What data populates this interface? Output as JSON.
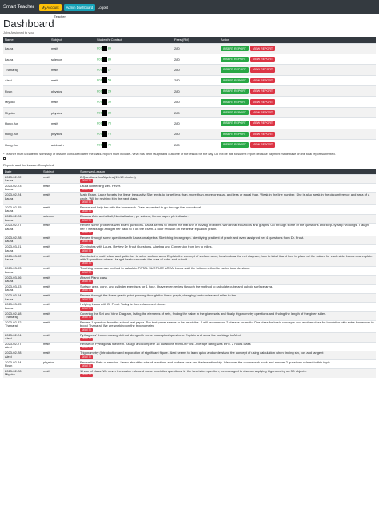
{
  "nav": {
    "brand": "Smart Teacher",
    "my_account": "My Account",
    "admin_dashboard": "Admin Dashboard",
    "logout": "Logout"
  },
  "header": {
    "title": "Dashboard",
    "role": "Teacher",
    "subtitle": "Jobs Assigned to you"
  },
  "jobs": {
    "columns": [
      "Name",
      "Subject",
      "Student's Contact",
      "Fees (RM)",
      "Action"
    ],
    "insert_label": "INSERT REPORT",
    "view_label": "VIEW REPORT",
    "rows": [
      {
        "name": "Laura",
        "subject": "math",
        "c1": "601",
        "c2": "89",
        "fees": "280"
      },
      {
        "name": "Laura",
        "subject": "science",
        "c1": "601",
        "c2": "89",
        "fees": "280"
      },
      {
        "name": "Thanaraj",
        "subject": "math",
        "c1": "601",
        "c2": "17",
        "fees": "280"
      },
      {
        "name": "Alexi",
        "subject": "math",
        "c1": "601",
        "c2": "59",
        "fees": "280"
      },
      {
        "name": "Ryan",
        "subject": "physics",
        "c1": "601",
        "c2": "29",
        "fees": "280"
      },
      {
        "name": "Miyoko",
        "subject": "math",
        "c1": "601",
        "c2": "35",
        "fees": "280"
      },
      {
        "name": "Miyoko",
        "subject": "physics",
        "c1": "601",
        "c2": "35",
        "fees": "280"
      },
      {
        "name": "Hong Jun",
        "subject": "math",
        "c1": "601",
        "c2": "76",
        "fees": "280"
      },
      {
        "name": "Hong Jun",
        "subject": "physics",
        "c1": "601",
        "c2": "76",
        "fees": "280"
      },
      {
        "name": "Hong Jun",
        "subject": "addmath",
        "c1": "601",
        "c2": "76",
        "fees": "280"
      }
    ]
  },
  "note": "* Teacher must update the summary of lessons conducted after the class. Report must include - what has been taught and outcome of the lesson for the day. Do not be late to submit report because payment made base on the total report submitted.",
  "reports": {
    "label": "Reports and the Lesson Completed",
    "columns": [
      "Date",
      "Subject",
      "Summary Lesson"
    ],
    "delete_label": "DELETE",
    "rows": [
      {
        "date": "2023-02-22",
        "student": "Laura",
        "subject": "math",
        "summary": "2 Questions for Algebra (15-17minutes)"
      },
      {
        "date": "2023-02-23",
        "student": "Laura",
        "subject": "math",
        "summary": "Laura not feeling well. Fever."
      },
      {
        "date": "2023-02-24",
        "student": "Laura",
        "subject": "math",
        "summary": "Math Exam. Laura forgets the linear inequality. She tends to forget less than, more than, more or equal, and less or equal than. Weak in the line number. She is also weak in the circumference and area of a circle. Will be revising it in the next class."
      },
      {
        "date": "2023-02-25",
        "student": "Laura",
        "subject": "math",
        "summary": "Revise and help her with the homework. Date requested to go through the schoolwork."
      },
      {
        "date": "2023-02-26",
        "student": "Laura",
        "subject": "science",
        "summary": "Discuss Acid and Alkali, Neutralisation, ph values , litmus paper, ph indicator."
      },
      {
        "date": "2023-02-27",
        "student": "Laura",
        "subject": "math",
        "summary": "Review some problems with exam questions. Laura seems to inform me that she is having problems with linear equations and graphs. Go through some of the questions and step-by-step workings. I taught her 2 weeks ago and get her back to it on the exam. 1 hour revision on the linear equation graph."
      },
      {
        "date": "2023-02-28",
        "student": "Laura",
        "subject": "math",
        "summary": "Review through some questions with Laura on algebra. Sketching linear graph. Identifying gradient of graph and even assigned her 4 questions from Dr. Frost."
      },
      {
        "date": "2023-03-01",
        "student": "Laura",
        "subject": "math",
        "summary": "20 minutes with Laura. Review Dr Frost Questions. Algebra and Conversion from km to miles."
      },
      {
        "date": "2023-03-02",
        "student": "Laura",
        "subject": "math",
        "summary": "Conducted a math class and guide her to solve surface area. Explain the concept of surface area, how to draw the net diagram, how to label it and how to place all the values for each side. Laura was explain with 3 questions where I taught her to calculate the area of cube and cuboid."
      },
      {
        "date": "2023-03-03",
        "student": "Laura",
        "subject": "math",
        "summary": "Teaching Laura new method to calculate TOTAL SURFACE AREA. Laura said the tuition method is easier to understand."
      },
      {
        "date": "2023-03-06",
        "student": "Laura",
        "subject": "math",
        "summary": "Absent Piano class"
      },
      {
        "date": "2023-03-03",
        "student": "Laura",
        "subject": "math",
        "summary": "Surface area, cone, and cylinder exercises for 1 hour. I have even review through the method to calculate cube and cuboid surface area."
      },
      {
        "date": "2023-03-04",
        "student": "Laura",
        "subject": "math",
        "summary": "Review through the linear graph, point passing through the linear graph, changing km to miles and miles to km."
      },
      {
        "date": "2023-03-05",
        "student": "Laura",
        "subject": "math",
        "summary": "Helping Laura with Dr Frost. Today is the replacement class."
      },
      {
        "date": "2023-02-18",
        "student": "Thanaraj",
        "subject": "math",
        "summary": "Covering the Set and Venn Diagram, listing the elements of sets, finding the value in the given sets and finally trigonometry questions and finding the length of the given sides."
      },
      {
        "date": "2023-02-22",
        "student": "Thanaraj",
        "subject": "math",
        "summary": "Review 1 question from the school test paper. The test paper seems to be heuristics. 2 will recommend 2 classes for math. One class for basic concepts and another class for heuristics with extra homework to boost Thanaraj. We are working on the trigonometry."
      },
      {
        "date": "2023-02-24",
        "student": "Alexi",
        "subject": "math",
        "summary": "Pythagoras' theorem using dr frost along with some conceptual questions. Explain and show the workings to Alexi"
      },
      {
        "date": "2023-02-27",
        "student": "Alexi",
        "subject": "math",
        "summary": "Revise on Pythagoras theorem. Assign and complete 15 questions from Dr Frost. Average rating was 69%. 2 hours class"
      },
      {
        "date": "2023-02-28",
        "student": "Alexi",
        "subject": "math",
        "summary": "Trigonometry (Introduction and exploration of significant figure. Alexi seems to learn quick and understand the concept of using calculation when finding sin, cos and tangent"
      },
      {
        "date": "2023-02-24",
        "student": "Ryan",
        "subject": "physics",
        "summary": "Revise the Rate of reaction. Learn about the rate of reactions and surface area and their relationship. We cover the coursework book and answer 2 questions related to this topic"
      },
      {
        "date": "2023-02-28",
        "student": "Miyoko",
        "subject": "math",
        "summary": "1 hour of class. We cover the cosine rule and some heuristics questions. In the heuristics question, we managed to discuss applying trigonometry on 3D objects."
      }
    ]
  }
}
